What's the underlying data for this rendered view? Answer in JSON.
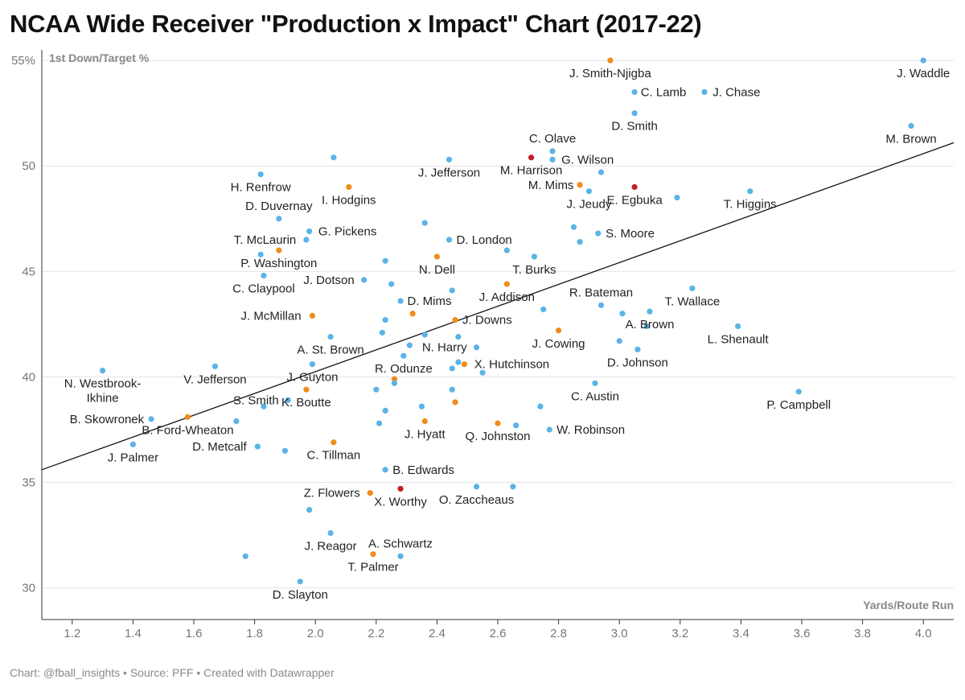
{
  "title": "NCAA Wide Receiver \"Production x Impact\" Chart (2017-22)",
  "footer": "Chart: @fball_insights • Source: PFF • Created with Datawrapper",
  "colors": {
    "blue": "#5ab4e5",
    "orange": "#f08c19",
    "red": "#c41e24",
    "line": "#111111",
    "grid": "#e4e4e4"
  },
  "chart_data": {
    "type": "scatter",
    "title": "NCAA Wide Receiver \"Production x Impact\" Chart (2017-22)",
    "xlabel": "Yards/Route Run",
    "ylabel": "1st Down/Target %",
    "xlim": [
      1.1,
      4.1
    ],
    "ylim": [
      28.5,
      55.5
    ],
    "x_ticks": [
      "1.2",
      "1.4",
      "1.6",
      "1.8",
      "2.0",
      "2.2",
      "2.4",
      "2.6",
      "2.8",
      "3.0",
      "3.2",
      "3.4",
      "3.6",
      "3.8",
      "4.0"
    ],
    "y_ticks": [
      {
        "v": 30,
        "label": "30"
      },
      {
        "v": 35,
        "label": "35"
      },
      {
        "v": 40,
        "label": "40"
      },
      {
        "v": 45,
        "label": "45"
      },
      {
        "v": 50,
        "label": "50"
      },
      {
        "v": 55,
        "label": "55%"
      }
    ],
    "grid": "horizontal",
    "trendline": [
      [
        1.1,
        35.6
      ],
      [
        4.1,
        51.1
      ]
    ],
    "points": [
      {
        "x": 4.0,
        "y": 55.0,
        "c": "blue",
        "label": "J. Waddle"
      },
      {
        "x": 2.97,
        "y": 55.0,
        "c": "orange",
        "label": "J. Smith-Njigba"
      },
      {
        "x": 3.05,
        "y": 53.5,
        "c": "blue",
        "label": "C. Lamb"
      },
      {
        "x": 3.28,
        "y": 53.5,
        "c": "blue",
        "label": "J. Chase"
      },
      {
        "x": 3.05,
        "y": 52.5,
        "c": "blue",
        "label": "D. Smith"
      },
      {
        "x": 3.96,
        "y": 51.9,
        "c": "blue",
        "label": "M. Brown"
      },
      {
        "x": 2.78,
        "y": 50.7,
        "c": "blue",
        "label": "C. Olave"
      },
      {
        "x": 2.71,
        "y": 50.4,
        "c": "red",
        "label": "M. Harrison"
      },
      {
        "x": 2.78,
        "y": 50.3,
        "c": "blue",
        "label": "G. Wilson"
      },
      {
        "x": 2.44,
        "y": 50.3,
        "c": "blue",
        "label": "J. Jefferson"
      },
      {
        "x": 2.06,
        "y": 50.4,
        "c": "blue",
        "label": ""
      },
      {
        "x": 2.94,
        "y": 49.7,
        "c": "blue",
        "label": ""
      },
      {
        "x": 1.82,
        "y": 49.6,
        "c": "blue",
        "label": "H. Renfrow"
      },
      {
        "x": 2.87,
        "y": 49.1,
        "c": "orange",
        "label": "M. Mims"
      },
      {
        "x": 2.11,
        "y": 49.0,
        "c": "orange",
        "label": "I. Hodgins"
      },
      {
        "x": 3.05,
        "y": 49.0,
        "c": "red",
        "label": "E. Egbuka"
      },
      {
        "x": 2.9,
        "y": 48.8,
        "c": "blue",
        "label": "J. Jeudy"
      },
      {
        "x": 3.43,
        "y": 48.8,
        "c": "blue",
        "label": "T. Higgins"
      },
      {
        "x": 3.19,
        "y": 48.5,
        "c": "blue",
        "label": ""
      },
      {
        "x": 1.88,
        "y": 47.5,
        "c": "blue",
        "label": "D. Duvernay"
      },
      {
        "x": 2.36,
        "y": 47.3,
        "c": "blue",
        "label": ""
      },
      {
        "x": 2.85,
        "y": 47.1,
        "c": "blue",
        "label": ""
      },
      {
        "x": 1.98,
        "y": 46.9,
        "c": "blue",
        "label": "G. Pickens"
      },
      {
        "x": 2.93,
        "y": 46.8,
        "c": "blue",
        "label": "S. Moore"
      },
      {
        "x": 1.97,
        "y": 46.5,
        "c": "blue",
        "label": "T. McLaurin"
      },
      {
        "x": 2.44,
        "y": 46.5,
        "c": "blue",
        "label": "D. London"
      },
      {
        "x": 2.87,
        "y": 46.4,
        "c": "blue",
        "label": ""
      },
      {
        "x": 1.88,
        "y": 46.0,
        "c": "orange",
        "label": "P. Washington"
      },
      {
        "x": 2.63,
        "y": 46.0,
        "c": "blue",
        "label": ""
      },
      {
        "x": 1.82,
        "y": 45.8,
        "c": "blue",
        "label": ""
      },
      {
        "x": 2.72,
        "y": 45.7,
        "c": "blue",
        "label": "T. Burks"
      },
      {
        "x": 2.4,
        "y": 45.7,
        "c": "orange",
        "label": "N. Dell"
      },
      {
        "x": 2.23,
        "y": 45.5,
        "c": "blue",
        "label": ""
      },
      {
        "x": 1.83,
        "y": 44.8,
        "c": "blue",
        "label": "C. Claypool"
      },
      {
        "x": 2.16,
        "y": 44.6,
        "c": "blue",
        "label": "J. Dotson"
      },
      {
        "x": 2.25,
        "y": 44.4,
        "c": "blue",
        "label": ""
      },
      {
        "x": 2.63,
        "y": 44.4,
        "c": "orange",
        "label": "J. Addison"
      },
      {
        "x": 3.24,
        "y": 44.2,
        "c": "blue",
        "label": "T. Wallace"
      },
      {
        "x": 2.45,
        "y": 44.1,
        "c": "blue",
        "label": ""
      },
      {
        "x": 2.28,
        "y": 43.6,
        "c": "blue",
        "label": "D. Mims"
      },
      {
        "x": 2.94,
        "y": 43.4,
        "c": "blue",
        "label": "R. Bateman"
      },
      {
        "x": 2.75,
        "y": 43.2,
        "c": "blue",
        "label": ""
      },
      {
        "x": 3.1,
        "y": 43.1,
        "c": "blue",
        "label": "A. Brown"
      },
      {
        "x": 2.32,
        "y": 43.0,
        "c": "orange",
        "label": ""
      },
      {
        "x": 3.01,
        "y": 43.0,
        "c": "blue",
        "label": ""
      },
      {
        "x": 1.99,
        "y": 42.9,
        "c": "orange",
        "label": "J. McMillan"
      },
      {
        "x": 2.23,
        "y": 42.7,
        "c": "blue",
        "label": ""
      },
      {
        "x": 2.46,
        "y": 42.7,
        "c": "orange",
        "label": "J. Downs"
      },
      {
        "x": 3.09,
        "y": 42.4,
        "c": "blue",
        "label": ""
      },
      {
        "x": 3.39,
        "y": 42.4,
        "c": "blue",
        "label": "L. Shenault"
      },
      {
        "x": 2.8,
        "y": 42.2,
        "c": "orange",
        "label": "J. Cowing"
      },
      {
        "x": 2.22,
        "y": 42.1,
        "c": "blue",
        "label": ""
      },
      {
        "x": 2.36,
        "y": 42.0,
        "c": "blue",
        "label": ""
      },
      {
        "x": 2.05,
        "y": 41.9,
        "c": "blue",
        "label": "A. St. Brown"
      },
      {
        "x": 2.47,
        "y": 41.9,
        "c": "blue",
        "label": ""
      },
      {
        "x": 3.0,
        "y": 41.7,
        "c": "blue",
        "label": ""
      },
      {
        "x": 2.31,
        "y": 41.5,
        "c": "blue",
        "label": ""
      },
      {
        "x": 2.53,
        "y": 41.4,
        "c": "blue",
        "label": "N. Harry"
      },
      {
        "x": 3.06,
        "y": 41.3,
        "c": "blue",
        "label": "D. Johnson"
      },
      {
        "x": 2.29,
        "y": 41.0,
        "c": "blue",
        "label": "R. Odunze"
      },
      {
        "x": 2.47,
        "y": 40.7,
        "c": "blue",
        "label": ""
      },
      {
        "x": 2.49,
        "y": 40.6,
        "c": "orange",
        "label": "X. Hutchinson"
      },
      {
        "x": 1.99,
        "y": 40.6,
        "c": "blue",
        "label": "J. Guyton"
      },
      {
        "x": 1.67,
        "y": 40.5,
        "c": "blue",
        "label": "V. Jefferson"
      },
      {
        "x": 2.45,
        "y": 40.4,
        "c": "blue",
        "label": ""
      },
      {
        "x": 1.3,
        "y": 40.3,
        "c": "blue",
        "label": "N. Westbrook-Ikhine"
      },
      {
        "x": 2.55,
        "y": 40.2,
        "c": "blue",
        "label": ""
      },
      {
        "x": 2.26,
        "y": 39.9,
        "c": "orange",
        "label": ""
      },
      {
        "x": 2.26,
        "y": 39.7,
        "c": "blue",
        "label": ""
      },
      {
        "x": 2.92,
        "y": 39.7,
        "c": "blue",
        "label": "C. Austin"
      },
      {
        "x": 1.97,
        "y": 39.4,
        "c": "orange",
        "label": "K. Boutte"
      },
      {
        "x": 2.2,
        "y": 39.4,
        "c": "blue",
        "label": ""
      },
      {
        "x": 2.45,
        "y": 39.4,
        "c": "blue",
        "label": ""
      },
      {
        "x": 3.59,
        "y": 39.3,
        "c": "blue",
        "label": "P. Campbell"
      },
      {
        "x": 1.91,
        "y": 38.9,
        "c": "blue",
        "label": "S. Smith"
      },
      {
        "x": 2.46,
        "y": 38.8,
        "c": "orange",
        "label": ""
      },
      {
        "x": 1.83,
        "y": 38.6,
        "c": "blue",
        "label": ""
      },
      {
        "x": 2.35,
        "y": 38.6,
        "c": "blue",
        "label": ""
      },
      {
        "x": 2.74,
        "y": 38.6,
        "c": "blue",
        "label": ""
      },
      {
        "x": 2.23,
        "y": 38.4,
        "c": "blue",
        "label": ""
      },
      {
        "x": 1.58,
        "y": 38.1,
        "c": "orange",
        "label": "B. Ford-Wheaton"
      },
      {
        "x": 1.46,
        "y": 38.0,
        "c": "blue",
        "label": "B. Skowronek"
      },
      {
        "x": 2.36,
        "y": 37.9,
        "c": "orange",
        "label": "J. Hyatt"
      },
      {
        "x": 1.74,
        "y": 37.9,
        "c": "blue",
        "label": ""
      },
      {
        "x": 2.21,
        "y": 37.8,
        "c": "blue",
        "label": ""
      },
      {
        "x": 2.6,
        "y": 37.8,
        "c": "orange",
        "label": "Q. Johnston"
      },
      {
        "x": 2.66,
        "y": 37.7,
        "c": "blue",
        "label": ""
      },
      {
        "x": 2.77,
        "y": 37.5,
        "c": "blue",
        "label": "W. Robinson"
      },
      {
        "x": 2.06,
        "y": 36.9,
        "c": "orange",
        "label": "C. Tillman"
      },
      {
        "x": 1.4,
        "y": 36.8,
        "c": "blue",
        "label": "J. Palmer"
      },
      {
        "x": 1.81,
        "y": 36.7,
        "c": "blue",
        "label": "D. Metcalf"
      },
      {
        "x": 1.9,
        "y": 36.5,
        "c": "blue",
        "label": ""
      },
      {
        "x": 2.23,
        "y": 35.6,
        "c": "blue",
        "label": "B. Edwards"
      },
      {
        "x": 2.28,
        "y": 34.7,
        "c": "red",
        "label": "X. Worthy"
      },
      {
        "x": 2.53,
        "y": 34.8,
        "c": "blue",
        "label": "O. Zaccheaus"
      },
      {
        "x": 2.65,
        "y": 34.8,
        "c": "blue",
        "label": ""
      },
      {
        "x": 2.18,
        "y": 34.5,
        "c": "orange",
        "label": "Z. Flowers"
      },
      {
        "x": 1.98,
        "y": 33.7,
        "c": "blue",
        "label": ""
      },
      {
        "x": 2.05,
        "y": 32.6,
        "c": "blue",
        "label": "J. Reagor"
      },
      {
        "x": 2.19,
        "y": 31.6,
        "c": "orange",
        "label": "T. Palmer"
      },
      {
        "x": 1.77,
        "y": 31.5,
        "c": "blue",
        "label": ""
      },
      {
        "x": 2.28,
        "y": 31.5,
        "c": "blue",
        "label": "A. Schwartz"
      },
      {
        "x": 1.95,
        "y": 30.3,
        "c": "blue",
        "label": "D. Slayton"
      }
    ]
  }
}
